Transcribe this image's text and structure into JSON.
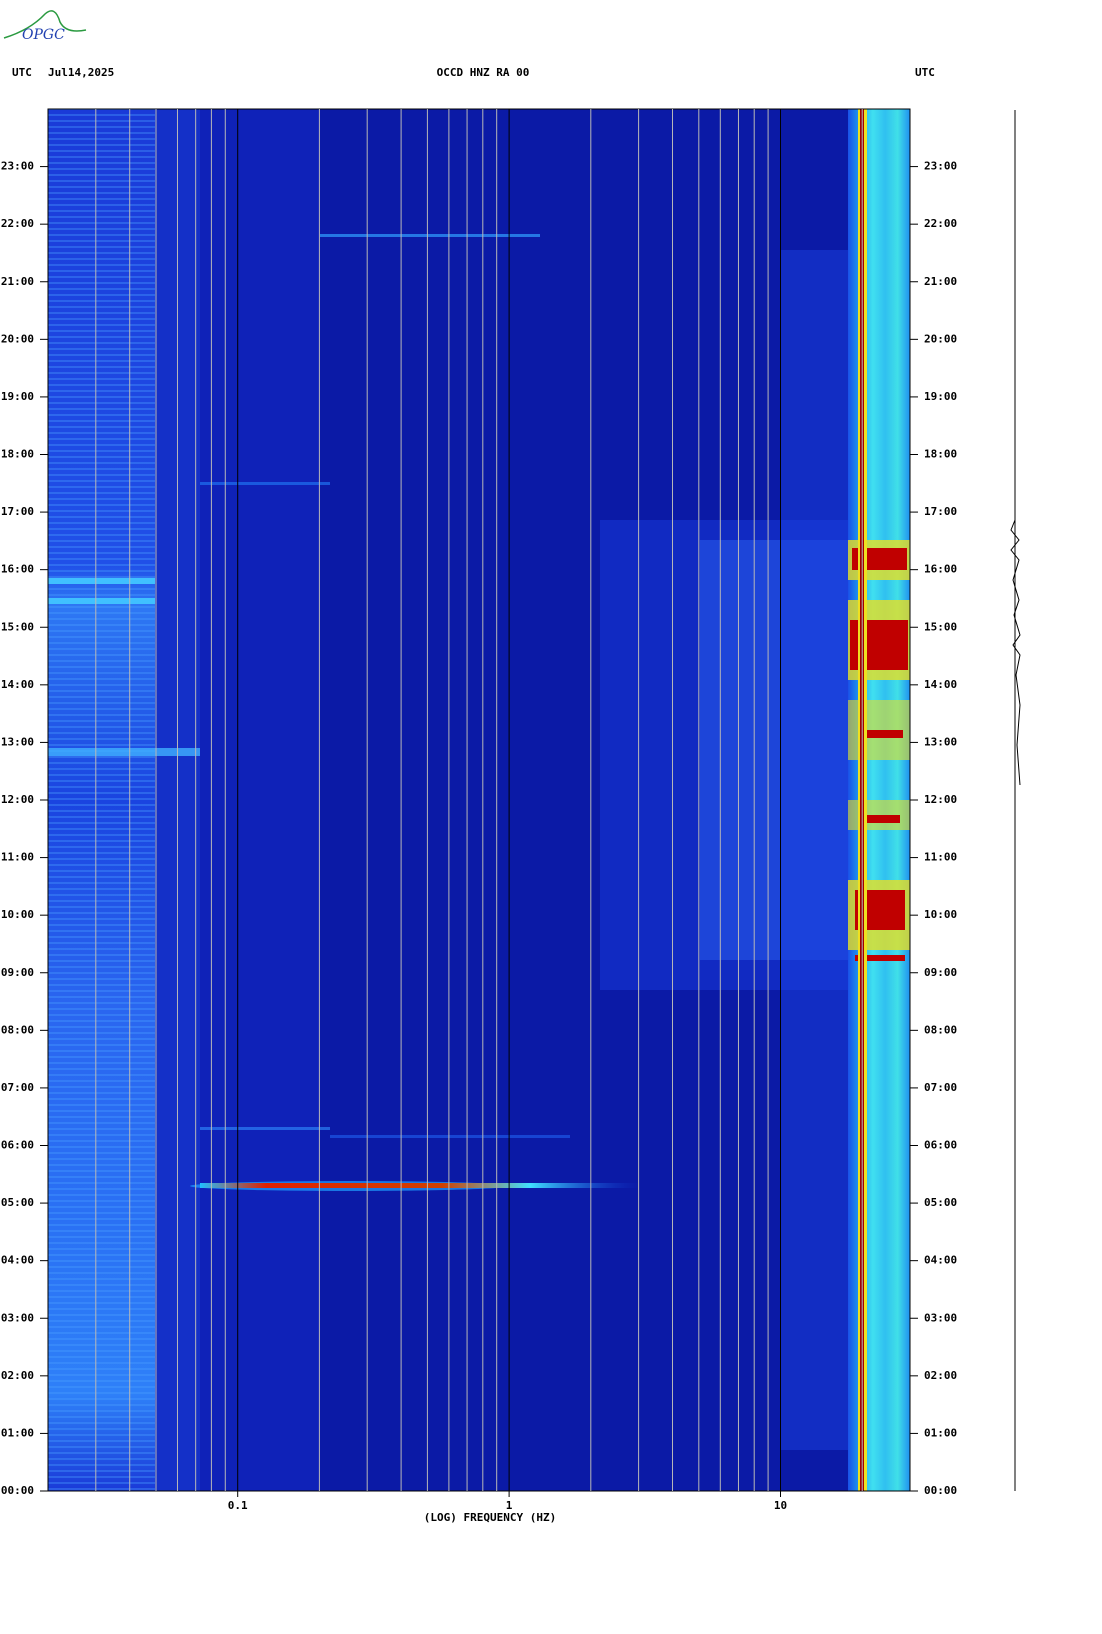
{
  "chart_data": {
    "type": "spectrogram",
    "logo": "OPGC",
    "header_left_zone": "UTC",
    "header_date": "Jul14,2025",
    "title": "OCCD HNZ RA 00",
    "header_right_zone": "UTC",
    "xlabel": "(LOG) FREQUENCY (HZ)",
    "xscale": "log",
    "xlim": [
      0.02,
      30
    ],
    "xticks": [
      0.1,
      1,
      10
    ],
    "x_minor_ticks": [
      0.03,
      0.04,
      0.05,
      0.06,
      0.07,
      0.08,
      0.09,
      0.2,
      0.3,
      0.4,
      0.5,
      0.6,
      0.7,
      0.8,
      0.9,
      2,
      3,
      4,
      5,
      6,
      7,
      8,
      9,
      20
    ],
    "ylim": [
      0,
      24
    ],
    "yticks": [
      {
        "value": 0,
        "label": "00:00"
      },
      {
        "value": 1,
        "label": "01:00"
      },
      {
        "value": 2,
        "label": "02:00"
      },
      {
        "value": 3,
        "label": "03:00"
      },
      {
        "value": 4,
        "label": "04:00"
      },
      {
        "value": 5,
        "label": "05:00"
      },
      {
        "value": 6,
        "label": "06:00"
      },
      {
        "value": 7,
        "label": "07:00"
      },
      {
        "value": 8,
        "label": "08:00"
      },
      {
        "value": 9,
        "label": "09:00"
      },
      {
        "value": 10,
        "label": "10:00"
      },
      {
        "value": 11,
        "label": "11:00"
      },
      {
        "value": 12,
        "label": "12:00"
      },
      {
        "value": 13,
        "label": "13:00"
      },
      {
        "value": 14,
        "label": "14:00"
      },
      {
        "value": 15,
        "label": "15:00"
      },
      {
        "value": 16,
        "label": "16:00"
      },
      {
        "value": 17,
        "label": "17:00"
      },
      {
        "value": 18,
        "label": "18:00"
      },
      {
        "value": 19,
        "label": "19:00"
      },
      {
        "value": 20,
        "label": "20:00"
      },
      {
        "value": 21,
        "label": "21:00"
      },
      {
        "value": 22,
        "label": "22:00"
      },
      {
        "value": 23,
        "label": "23:00"
      }
    ]
  }
}
